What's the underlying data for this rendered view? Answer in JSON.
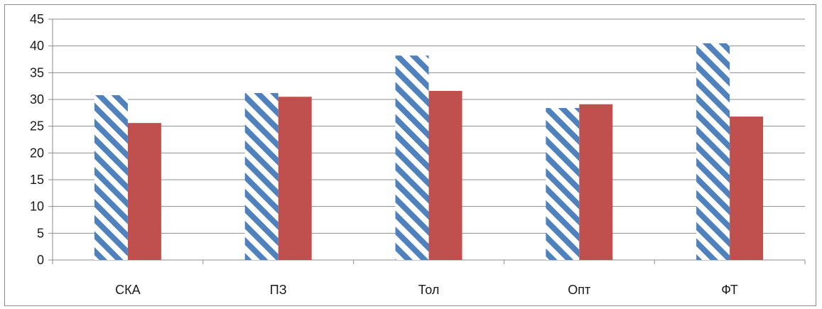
{
  "chart_data": {
    "type": "bar",
    "categories": [
      "СКА",
      "ПЗ",
      "Тол",
      "Опт",
      "ФТ"
    ],
    "series": [
      {
        "values": [
          30.8,
          31.2,
          38.2,
          28.4,
          40.5
        ],
        "color": "#4f81bd",
        "fill": "diagonal-hatch"
      },
      {
        "values": [
          25.6,
          30.5,
          31.6,
          29.1,
          26.8
        ],
        "color": "#c0504d",
        "fill": "solid"
      }
    ],
    "ylim": [
      0,
      45
    ],
    "yticks": [
      0,
      5,
      10,
      15,
      20,
      25,
      30,
      35,
      40,
      45
    ],
    "grid": true,
    "legend": "none",
    "title": "",
    "xlabel": "",
    "ylabel": ""
  }
}
